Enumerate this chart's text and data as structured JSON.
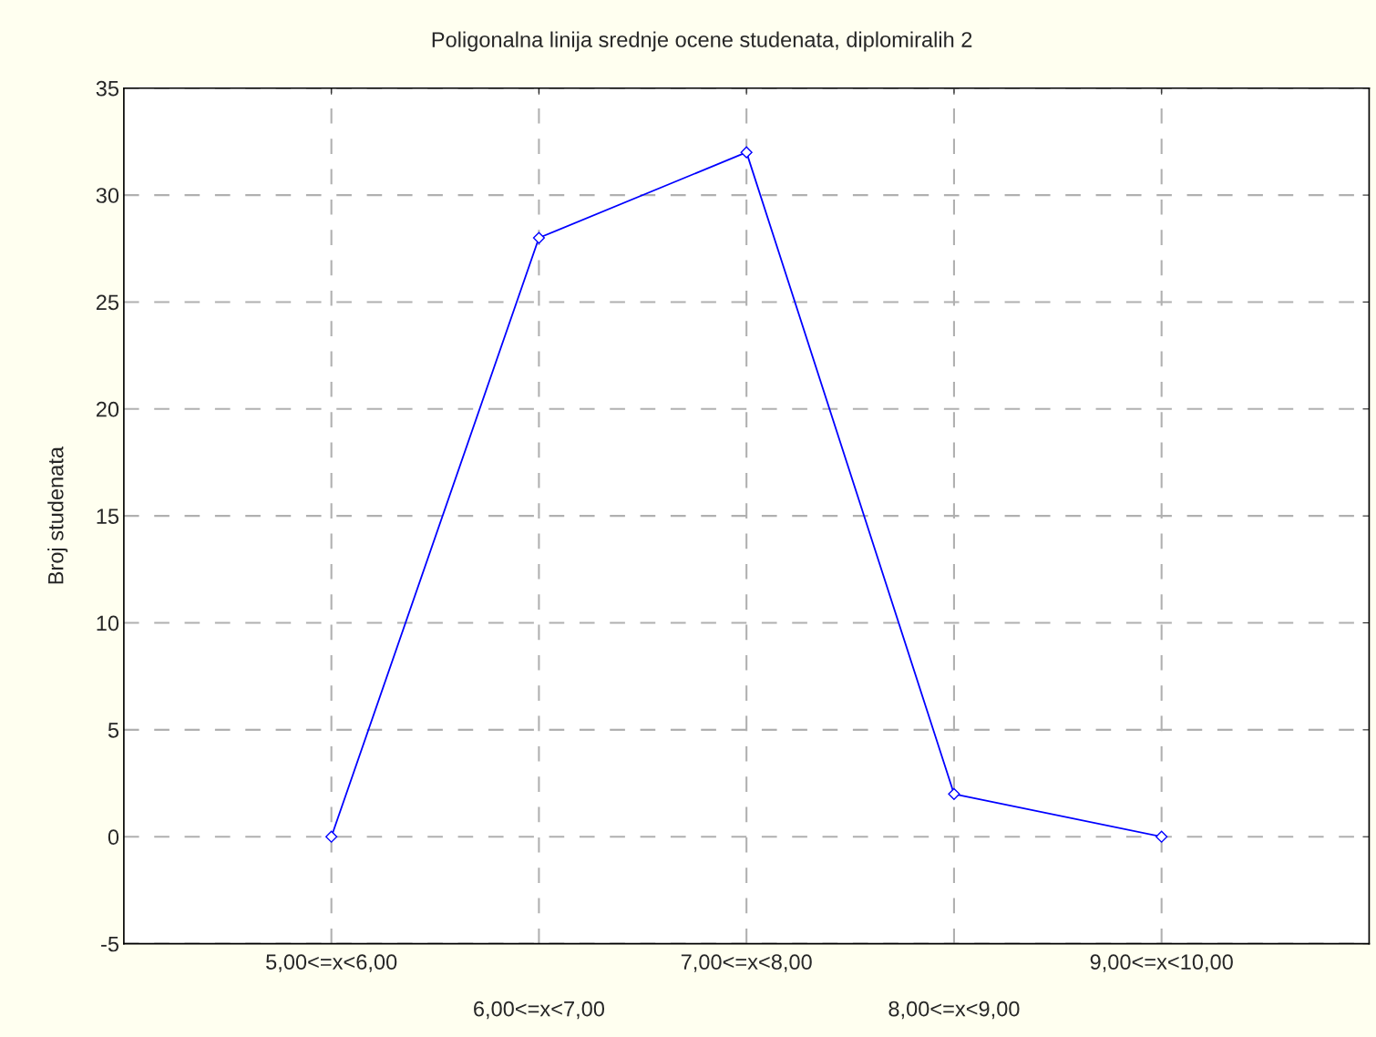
{
  "chart_data": {
    "type": "line",
    "title": "Poligonalna linija srednje ocene studenata, diplomiralih 2",
    "ylabel": "Broj studenata",
    "categories": [
      "5,00<=x<6,00",
      "6,00<=x<7,00",
      "7,00<=x<8,00",
      "8,00<=x<9,00",
      "9,00<=x<10,00"
    ],
    "series": [
      {
        "color": "#0000ff",
        "values": [
          0,
          28,
          32,
          2,
          0
        ]
      }
    ],
    "ylim": [
      -5,
      35
    ],
    "yticks": [
      -5,
      0,
      5,
      10,
      15,
      20,
      25,
      30,
      35
    ],
    "grid": true,
    "marker": "diamond",
    "line_style": "solid"
  }
}
